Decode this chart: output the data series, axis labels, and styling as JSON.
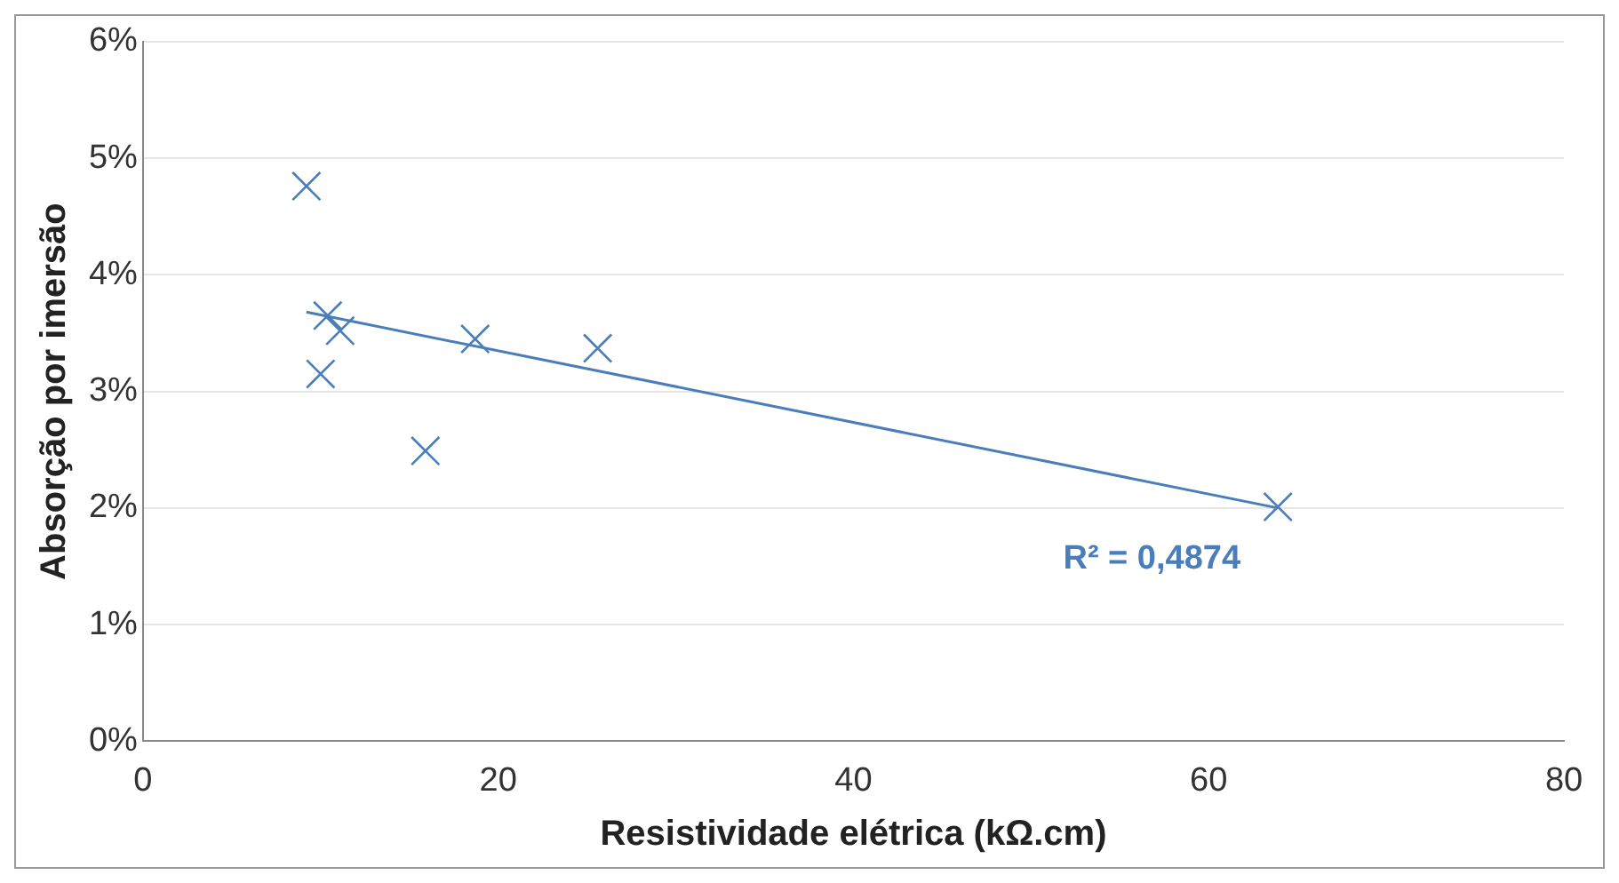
{
  "chart_data": {
    "type": "scatter",
    "xlabel": "Resistividade elétrica (kΩ.cm)",
    "ylabel": "Absorção por imersão",
    "xlim": [
      0,
      80
    ],
    "xticks": [
      0,
      20,
      40,
      60,
      80
    ],
    "ylim": [
      0,
      6
    ],
    "yticks": [
      {
        "value": 0,
        "label": "0%"
      },
      {
        "value": 1,
        "label": "1%"
      },
      {
        "value": 2,
        "label": "2%"
      },
      {
        "value": 3,
        "label": "3%"
      },
      {
        "value": 4,
        "label": "4%"
      },
      {
        "value": 5,
        "label": "5%"
      },
      {
        "value": 6,
        "label": "6%"
      }
    ],
    "grid": "y",
    "legend": false,
    "series": [
      {
        "color": "#4a7ebb",
        "marker": "cross",
        "x": [
          9.2,
          10.4,
          11.1,
          10.0,
          15.9,
          18.7,
          25.6,
          63.9
        ],
        "values": [
          4.76,
          3.65,
          3.52,
          3.15,
          2.49,
          3.45,
          3.37,
          2.01
        ]
      },
      {
        "type": "line",
        "color": "#4a7ebb",
        "marker": "none",
        "line_style": "solid",
        "x": [
          9.2,
          63.9
        ],
        "values": [
          3.68,
          2.0
        ]
      }
    ],
    "annotations": [
      "R² = 0,4874"
    ]
  }
}
